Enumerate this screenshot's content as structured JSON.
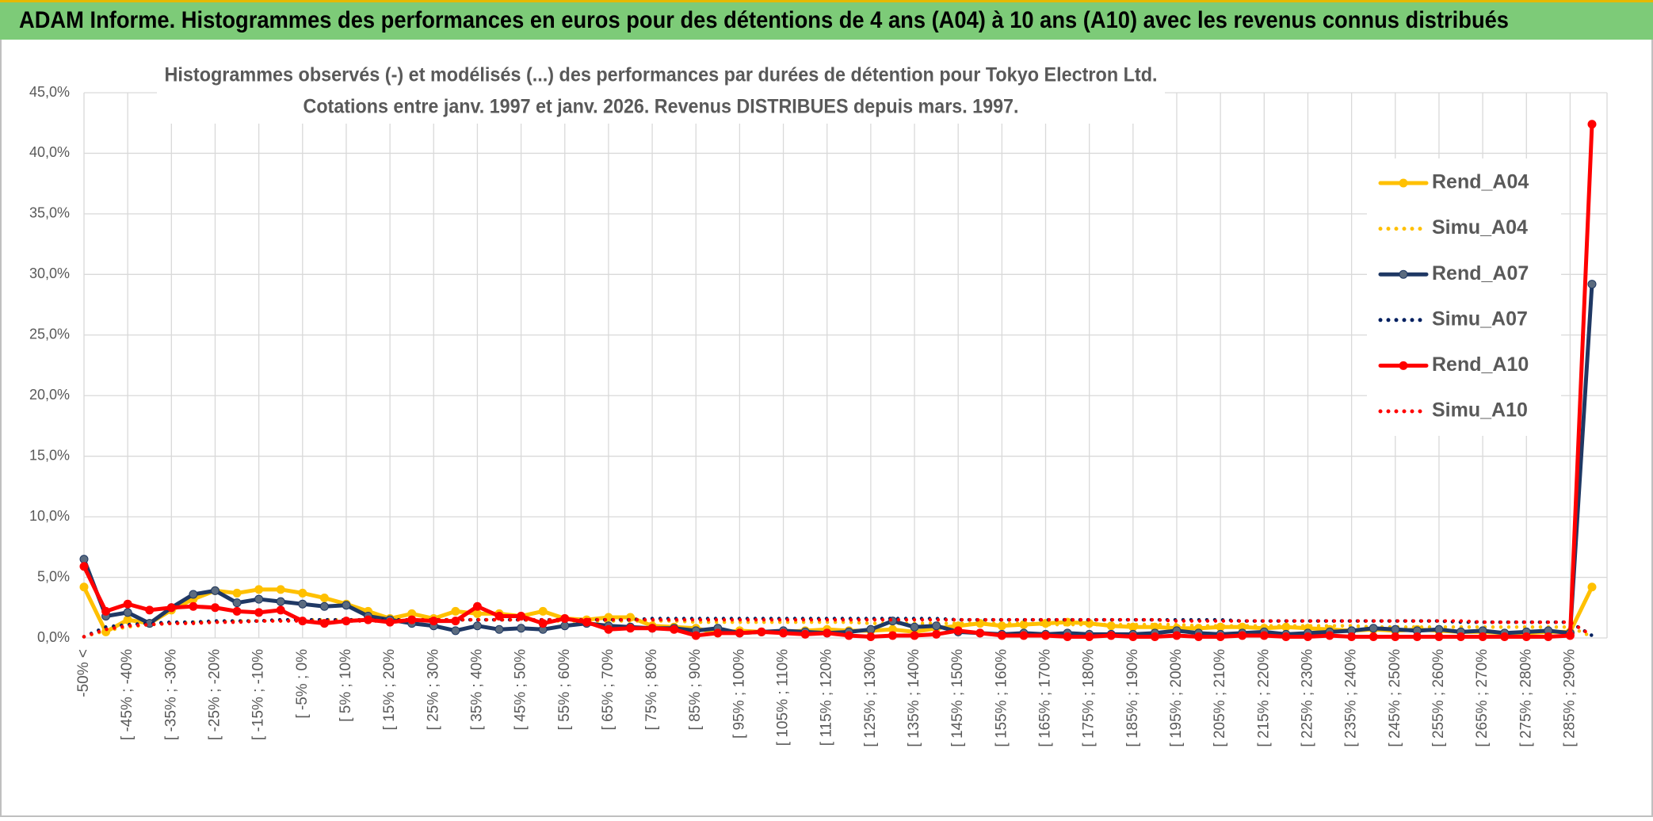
{
  "header": {
    "title": "ADAM Informe. Histogrammes des performances en euros pour des détentions de 4 ans (A04) à 10 ans (A10) avec les revenus connus distribués"
  },
  "chart_data": {
    "type": "line",
    "title": "Histogrammes observés (-) et modélisés (...) des performances par durées de détention pour Tokyo Electron Ltd.",
    "subtitle": "Cotations entre janv. 1997 et janv. 2026. Revenus DISTRIBUES depuis mars. 1997.",
    "categories": [
      "-50% <",
      null,
      "[ -45% ; -40%",
      null,
      "[ -35% ; -30%",
      null,
      "[ -25% ; -20%",
      null,
      "[ -15% ; -10%",
      null,
      "[ -5% ; 0%",
      null,
      "[ 5% ; 10%",
      null,
      "[ 15% ; 20%",
      null,
      "[ 25% ; 30%",
      null,
      "[ 35% ; 40%",
      null,
      "[ 45% ; 50%",
      null,
      "[ 55% ; 60%",
      null,
      "[ 65% ; 70%",
      null,
      "[ 75% ; 80%",
      null,
      "[ 85% ; 90%",
      null,
      "[ 95% ; 100%",
      null,
      "[ 105% ; 110%",
      null,
      "[ 115% ; 120%",
      null,
      "[ 125% ; 130%",
      null,
      "[ 135% ; 140%",
      null,
      "[ 145% ; 150%",
      null,
      "[ 155% ; 160%",
      null,
      "[ 165% ; 170%",
      null,
      "[ 175% ; 180%",
      null,
      "[ 185% ; 190%",
      null,
      "[ 195% ; 200%",
      null,
      "[ 205% ; 210%",
      null,
      "[ 215% ; 220%",
      null,
      "[ 225% ; 230%",
      null,
      "[ 235% ; 240%",
      null,
      "[ 245% ; 250%",
      null,
      "[ 255% ; 260%",
      null,
      "[ 265% ; 270%",
      null,
      "[ 275% ; 280%",
      null,
      "[ 285% ; 290%",
      null
    ],
    "ylim": [
      0,
      45
    ],
    "yticks": [
      {
        "value": 0,
        "label": "0,0%"
      },
      {
        "value": 5,
        "label": "5,0%"
      },
      {
        "value": 10,
        "label": "10,0%"
      },
      {
        "value": 15,
        "label": "15,0%"
      },
      {
        "value": 20,
        "label": "20,0%"
      },
      {
        "value": 25,
        "label": "25,0%"
      },
      {
        "value": 30,
        "label": "30,0%"
      },
      {
        "value": 35,
        "label": "35,0%"
      },
      {
        "value": 40,
        "label": "40,0%"
      },
      {
        "value": 45,
        "label": "45,0%"
      }
    ],
    "grid": true,
    "legend": "right",
    "series": [
      {
        "name": "Rend_A04",
        "color": "#FFC000",
        "style": "solid",
        "markers": true,
        "values": [
          4.2,
          0.5,
          1.5,
          1.2,
          2.3,
          3.2,
          3.9,
          3.7,
          4.0,
          4.0,
          3.7,
          3.3,
          2.8,
          2.2,
          1.6,
          2.0,
          1.6,
          2.2,
          2.0,
          2.0,
          1.8,
          2.2,
          1.6,
          1.5,
          1.7,
          1.7,
          1.0,
          0.9,
          0.8,
          0.4,
          0.6,
          0.5,
          0.5,
          0.6,
          0.7,
          0.6,
          0.6,
          0.7,
          0.5,
          0.8,
          1.0,
          1.2,
          1.0,
          1.1,
          1.2,
          1.3,
          1.2,
          1.0,
          0.9,
          0.9,
          0.8,
          0.8,
          0.9,
          0.9,
          0.8,
          0.9,
          0.8,
          0.7,
          0.6,
          0.7,
          0.6,
          0.7,
          0.6,
          0.5,
          0.5,
          0.4,
          0.4,
          0.5,
          0.5,
          4.2
        ]
      },
      {
        "name": "Simu_A04",
        "color": "#FFC000",
        "style": "dotted",
        "markers": false,
        "values": [
          0.1,
          0.6,
          0.9,
          1.1,
          1.2,
          1.3,
          1.3,
          1.4,
          1.4,
          1.4,
          1.5,
          1.5,
          1.5,
          1.5,
          1.5,
          1.5,
          1.5,
          1.5,
          1.5,
          1.5,
          1.5,
          1.4,
          1.4,
          1.4,
          1.4,
          1.4,
          1.4,
          1.4,
          1.3,
          1.3,
          1.3,
          1.3,
          1.3,
          1.3,
          1.3,
          1.3,
          1.2,
          1.2,
          1.2,
          1.2,
          1.2,
          1.2,
          1.2,
          1.2,
          1.1,
          1.1,
          1.1,
          1.1,
          1.1,
          1.1,
          1.1,
          1.0,
          1.0,
          1.0,
          1.0,
          1.0,
          1.0,
          1.0,
          1.0,
          0.9,
          0.9,
          0.9,
          0.9,
          0.9,
          0.9,
          0.9,
          0.9,
          0.9,
          0.9,
          0.1
        ]
      },
      {
        "name": "Rend_A07",
        "color": "#1F3864",
        "style": "solid",
        "markers": true,
        "values": [
          6.5,
          1.8,
          2.1,
          1.2,
          2.5,
          3.6,
          3.9,
          2.9,
          3.2,
          3.0,
          2.8,
          2.6,
          2.7,
          1.8,
          1.5,
          1.2,
          1.0,
          0.6,
          1.0,
          0.7,
          0.8,
          0.7,
          1.0,
          1.2,
          1.0,
          0.9,
          0.8,
          0.8,
          0.6,
          0.8,
          0.4,
          0.5,
          0.6,
          0.5,
          0.4,
          0.5,
          0.7,
          1.4,
          0.9,
          1.0,
          0.5,
          0.4,
          0.3,
          0.4,
          0.3,
          0.4,
          0.3,
          0.3,
          0.3,
          0.4,
          0.6,
          0.4,
          0.3,
          0.4,
          0.5,
          0.3,
          0.4,
          0.5,
          0.6,
          0.8,
          0.7,
          0.6,
          0.7,
          0.5,
          0.6,
          0.4,
          0.5,
          0.6,
          0.4,
          29.2
        ]
      },
      {
        "name": "Simu_A07",
        "color": "#002060",
        "style": "dotted",
        "markers": false,
        "values": [
          0.1,
          0.9,
          1.1,
          1.2,
          1.3,
          1.3,
          1.4,
          1.4,
          1.4,
          1.5,
          1.5,
          1.5,
          1.5,
          1.5,
          1.5,
          1.5,
          1.5,
          1.5,
          1.5,
          1.5,
          1.5,
          1.5,
          1.5,
          1.5,
          1.5,
          1.5,
          1.6,
          1.6,
          1.6,
          1.6,
          1.6,
          1.6,
          1.6,
          1.6,
          1.6,
          1.6,
          1.6,
          1.6,
          1.6,
          1.6,
          1.5,
          1.5,
          1.5,
          1.5,
          1.5,
          1.5,
          1.5,
          1.5,
          1.5,
          1.5,
          1.5,
          1.5,
          1.5,
          1.4,
          1.4,
          1.4,
          1.4,
          1.4,
          1.4,
          1.4,
          1.4,
          1.4,
          1.4,
          1.3,
          1.3,
          1.3,
          1.3,
          1.3,
          1.3,
          0.2
        ]
      },
      {
        "name": "Rend_A10",
        "color": "#FF0000",
        "style": "solid",
        "markers": true,
        "values": [
          5.9,
          2.2,
          2.8,
          2.3,
          2.5,
          2.6,
          2.5,
          2.2,
          2.1,
          2.3,
          1.4,
          1.2,
          1.4,
          1.5,
          1.3,
          1.5,
          1.4,
          1.4,
          2.6,
          1.8,
          1.8,
          1.2,
          1.6,
          1.3,
          0.7,
          0.8,
          0.8,
          0.7,
          0.2,
          0.4,
          0.4,
          0.5,
          0.4,
          0.3,
          0.4,
          0.2,
          0.1,
          0.2,
          0.2,
          0.3,
          0.6,
          0.4,
          0.2,
          0.2,
          0.2,
          0.1,
          0.1,
          0.2,
          0.1,
          0.1,
          0.2,
          0.1,
          0.1,
          0.2,
          0.2,
          0.1,
          0.1,
          0.2,
          0.1,
          0.1,
          0.1,
          0.1,
          0.1,
          0.1,
          0.1,
          0.1,
          0.1,
          0.1,
          0.2,
          42.4
        ]
      },
      {
        "name": "Simu_A10",
        "color": "#FF0000",
        "style": "dotted",
        "markers": false,
        "values": [
          0.1,
          0.7,
          1.0,
          1.1,
          1.2,
          1.2,
          1.3,
          1.3,
          1.4,
          1.4,
          1.4,
          1.4,
          1.4,
          1.4,
          1.4,
          1.5,
          1.5,
          1.5,
          1.5,
          1.5,
          1.5,
          1.5,
          1.5,
          1.5,
          1.5,
          1.5,
          1.5,
          1.5,
          1.5,
          1.5,
          1.5,
          1.5,
          1.5,
          1.5,
          1.5,
          1.5,
          1.5,
          1.5,
          1.5,
          1.5,
          1.5,
          1.5,
          1.5,
          1.5,
          1.5,
          1.5,
          1.5,
          1.5,
          1.5,
          1.5,
          1.4,
          1.4,
          1.4,
          1.4,
          1.4,
          1.4,
          1.4,
          1.4,
          1.4,
          1.4,
          1.4,
          1.4,
          1.4,
          1.4,
          1.3,
          1.3,
          1.3,
          1.3,
          1.3,
          0.2
        ]
      }
    ]
  }
}
